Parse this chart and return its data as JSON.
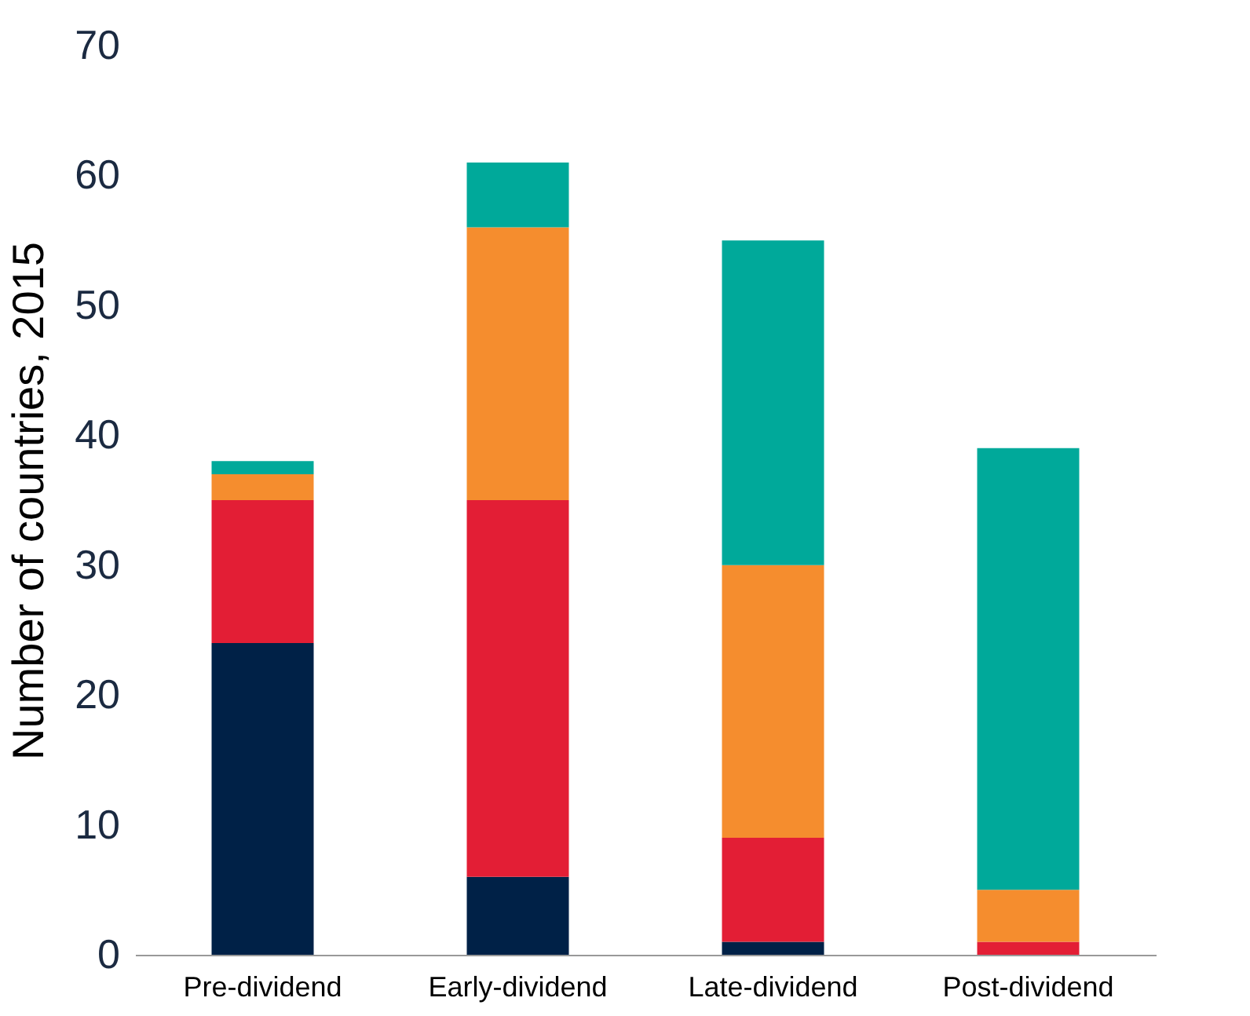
{
  "chart_data": {
    "type": "bar",
    "stacked": true,
    "ylabel": "Number of countries, 2015",
    "categories": [
      "Pre-dividend",
      "Early-dividend",
      "Late-dividend",
      "Post-dividend"
    ],
    "series": [
      {
        "color": "#002147",
        "values": [
          24,
          6,
          1,
          0
        ]
      },
      {
        "color": "#e31e35",
        "values": [
          11,
          29,
          8,
          1
        ]
      },
      {
        "color": "#f58d2e",
        "values": [
          2,
          21,
          21,
          4
        ]
      },
      {
        "color": "#00a99a",
        "values": [
          1,
          5,
          25,
          34
        ]
      }
    ],
    "ylim": [
      0,
      70
    ],
    "yticks": [
      0,
      10,
      20,
      30,
      40,
      50,
      60,
      70
    ],
    "grid": false,
    "legend": false
  }
}
